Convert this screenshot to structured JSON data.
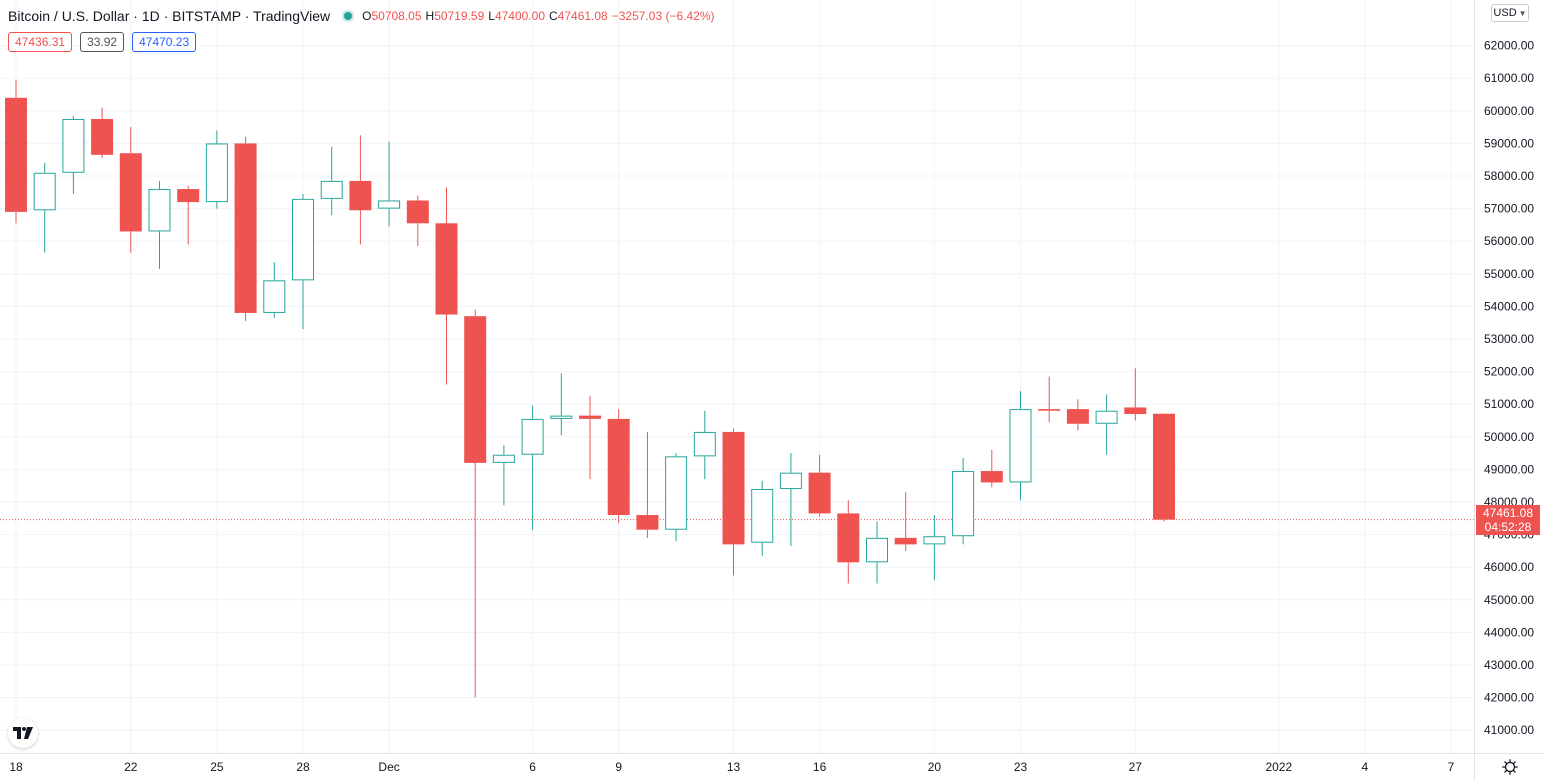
{
  "legend": {
    "title": "Bitcoin / U.S. Dollar · 1D · BITSTAMP · TradingView",
    "o_key": "O",
    "o": "50708.05",
    "h_key": "H",
    "h": "50719.59",
    "l_key": "L",
    "l": "47400.00",
    "c_key": "C",
    "c": "47461.08",
    "change": "−3257.03 (−6.42%)"
  },
  "tags": {
    "sell": "47436.31",
    "spread": "33.92",
    "buy": "47470.23"
  },
  "currency": {
    "label": "USD",
    "icon": "chevron-down-icon"
  },
  "last_price": {
    "price": "47461.08",
    "countdown": "04:52:28"
  },
  "colors": {
    "up": "#26a69a",
    "down": "#ef5350",
    "grid": "#f0f3fa",
    "axis_text": "#131722"
  },
  "chart_data": {
    "type": "candlestick",
    "title": "Bitcoin / U.S. Dollar · 1D · BITSTAMP · TradingView",
    "xlabel": "",
    "ylabel": "",
    "ylim": [
      40300,
      63400
    ],
    "grid": true,
    "y_ticks": [
      "41000.00",
      "42000.00",
      "43000.00",
      "44000.00",
      "45000.00",
      "46000.00",
      "47000.00",
      "48000.00",
      "49000.00",
      "50000.00",
      "51000.00",
      "52000.00",
      "53000.00",
      "54000.00",
      "55000.00",
      "56000.00",
      "57000.00",
      "58000.00",
      "59000.00",
      "60000.00",
      "61000.00",
      "62000.00"
    ],
    "x_ticks": [
      {
        "label": "18",
        "index": 0
      },
      {
        "label": "22",
        "index": 4
      },
      {
        "label": "25",
        "index": 7
      },
      {
        "label": "28",
        "index": 10
      },
      {
        "label": "Dec",
        "index": 13
      },
      {
        "label": "6",
        "index": 18
      },
      {
        "label": "9",
        "index": 21
      },
      {
        "label": "13",
        "index": 25
      },
      {
        "label": "16",
        "index": 28
      },
      {
        "label": "20",
        "index": 32
      },
      {
        "label": "23",
        "index": 35
      },
      {
        "label": "27",
        "index": 39
      },
      {
        "label": "2022",
        "index": 44
      },
      {
        "label": "4",
        "index": 47
      },
      {
        "label": "7",
        "index": 50
      }
    ],
    "series": [
      {
        "date": "2021-11-18",
        "open": 60400,
        "high": 60950,
        "low": 56550,
        "close": 56900
      },
      {
        "date": "2021-11-19",
        "open": 56950,
        "high": 58400,
        "low": 55650,
        "close": 58100
      },
      {
        "date": "2021-11-20",
        "open": 58100,
        "high": 59850,
        "low": 57450,
        "close": 59750
      },
      {
        "date": "2021-11-21",
        "open": 59750,
        "high": 60100,
        "low": 58550,
        "close": 58650
      },
      {
        "date": "2021-11-22",
        "open": 58700,
        "high": 59500,
        "low": 55650,
        "close": 56300
      },
      {
        "date": "2021-11-23",
        "open": 56300,
        "high": 57850,
        "low": 55150,
        "close": 57600
      },
      {
        "date": "2021-11-24",
        "open": 57600,
        "high": 57700,
        "low": 55900,
        "close": 57200
      },
      {
        "date": "2021-11-25",
        "open": 57200,
        "high": 59400,
        "low": 57000,
        "close": 59000
      },
      {
        "date": "2021-11-26",
        "open": 59000,
        "high": 59200,
        "low": 53550,
        "close": 53800
      },
      {
        "date": "2021-11-27",
        "open": 53800,
        "high": 55350,
        "low": 53650,
        "close": 54800
      },
      {
        "date": "2021-11-28",
        "open": 54800,
        "high": 57450,
        "low": 53300,
        "close": 57300
      },
      {
        "date": "2021-11-29",
        "open": 57300,
        "high": 58900,
        "low": 56800,
        "close": 57850
      },
      {
        "date": "2021-11-30",
        "open": 57850,
        "high": 59250,
        "low": 55900,
        "close": 56950
      },
      {
        "date": "2021-12-01",
        "open": 57000,
        "high": 59050,
        "low": 56450,
        "close": 57250
      },
      {
        "date": "2021-12-02",
        "open": 57250,
        "high": 57400,
        "low": 55850,
        "close": 56550
      },
      {
        "date": "2021-12-03",
        "open": 56550,
        "high": 57650,
        "low": 51600,
        "close": 53750
      },
      {
        "date": "2021-12-04",
        "open": 53700,
        "high": 53900,
        "low": 42000,
        "close": 49200
      },
      {
        "date": "2021-12-05",
        "open": 49200,
        "high": 49750,
        "low": 47900,
        "close": 49450
      },
      {
        "date": "2021-12-06",
        "open": 49450,
        "high": 50950,
        "low": 47150,
        "close": 50550
      },
      {
        "date": "2021-12-07",
        "open": 50550,
        "high": 51950,
        "low": 50050,
        "close": 50650
      },
      {
        "date": "2021-12-08",
        "open": 50650,
        "high": 51250,
        "low": 48700,
        "close": 50550
      },
      {
        "date": "2021-12-09",
        "open": 50550,
        "high": 50850,
        "low": 47350,
        "close": 47600
      },
      {
        "date": "2021-12-10",
        "open": 47600,
        "high": 50150,
        "low": 46900,
        "close": 47150
      },
      {
        "date": "2021-12-11",
        "open": 47150,
        "high": 49500,
        "low": 46800,
        "close": 49400
      },
      {
        "date": "2021-12-12",
        "open": 49400,
        "high": 50800,
        "low": 48700,
        "close": 50150
      },
      {
        "date": "2021-12-13",
        "open": 50150,
        "high": 50250,
        "low": 45750,
        "close": 46700
      },
      {
        "date": "2021-12-14",
        "open": 46750,
        "high": 48650,
        "low": 46350,
        "close": 48400
      },
      {
        "date": "2021-12-15",
        "open": 48400,
        "high": 49500,
        "low": 46650,
        "close": 48900
      },
      {
        "date": "2021-12-16",
        "open": 48900,
        "high": 49450,
        "low": 47550,
        "close": 47650
      },
      {
        "date": "2021-12-17",
        "open": 47650,
        "high": 48050,
        "low": 45500,
        "close": 46150
      },
      {
        "date": "2021-12-18",
        "open": 46150,
        "high": 47400,
        "low": 45500,
        "close": 46900
      },
      {
        "date": "2021-12-19",
        "open": 46900,
        "high": 48300,
        "low": 46500,
        "close": 46700
      },
      {
        "date": "2021-12-20",
        "open": 46700,
        "high": 47600,
        "low": 45600,
        "close": 46950
      },
      {
        "date": "2021-12-21",
        "open": 46950,
        "high": 49350,
        "low": 46700,
        "close": 48950
      },
      {
        "date": "2021-12-22",
        "open": 48950,
        "high": 49600,
        "low": 48450,
        "close": 48600
      },
      {
        "date": "2021-12-23",
        "open": 48600,
        "high": 51400,
        "low": 48050,
        "close": 50850
      },
      {
        "date": "2021-12-24",
        "open": 50850,
        "high": 51850,
        "low": 50450,
        "close": 50800
      },
      {
        "date": "2021-12-25",
        "open": 50850,
        "high": 51150,
        "low": 50200,
        "close": 50400
      },
      {
        "date": "2021-12-26",
        "open": 50400,
        "high": 51300,
        "low": 49450,
        "close": 50800
      },
      {
        "date": "2021-12-27",
        "open": 50900,
        "high": 52100,
        "low": 50500,
        "close": 50700
      },
      {
        "date": "2021-12-28",
        "open": 50708.05,
        "high": 50719.59,
        "low": 47400.0,
        "close": 47461.08
      }
    ],
    "last_price": 47461.08
  }
}
